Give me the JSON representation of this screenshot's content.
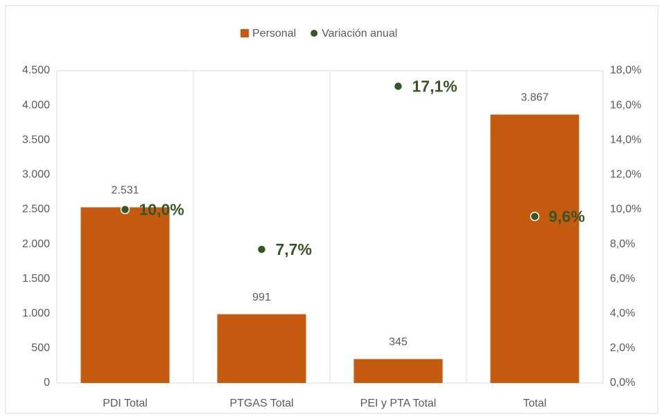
{
  "chart_data": {
    "type": "bar",
    "categories": [
      "PDI Total",
      "PTGAS Total",
      "PEI y PTA Total",
      "Total"
    ],
    "series": [
      {
        "name": "Personal",
        "type": "bar",
        "color": "#c55a11",
        "values": [
          2531,
          991,
          345,
          3867
        ],
        "value_labels": [
          "2.531",
          "991",
          "345",
          "3.867"
        ]
      },
      {
        "name": "Variación anual",
        "type": "scatter",
        "axis": "y2",
        "color": "#375623",
        "values": [
          10.0,
          7.7,
          17.1,
          9.6
        ],
        "value_labels": [
          "10,0%",
          "7,7%",
          "17,1%",
          "9,6%"
        ]
      }
    ],
    "ylim": [
      0,
      4500
    ],
    "yticks": [
      0,
      500,
      {
        "value": 1000,
        "label": "1.000"
      },
      {
        "value": 1500,
        "label": "1.500"
      },
      {
        "value": 2000,
        "label": "2.000"
      },
      {
        "value": 2500,
        "label": "2.500"
      },
      {
        "value": 3000,
        "label": "3.000"
      },
      {
        "value": 3500,
        "label": "3.500"
      },
      {
        "value": 4000,
        "label": "4.000"
      },
      {
        "value": 4500,
        "label": "4.500"
      }
    ],
    "y2lim": [
      0,
      18
    ],
    "y2ticks": [
      {
        "value": 0,
        "label": "0,0%"
      },
      {
        "value": 2,
        "label": "2,0%"
      },
      {
        "value": 4,
        "label": "4,0%"
      },
      {
        "value": 6,
        "label": "6,0%"
      },
      {
        "value": 8,
        "label": "8,0%"
      },
      {
        "value": 10,
        "label": "10,0%"
      },
      {
        "value": 12,
        "label": "12,0%"
      },
      {
        "value": 14,
        "label": "14,0%"
      },
      {
        "value": 16,
        "label": "16,0%"
      },
      {
        "value": 18,
        "label": "18,0%"
      }
    ],
    "legend": "top",
    "grid": false
  }
}
